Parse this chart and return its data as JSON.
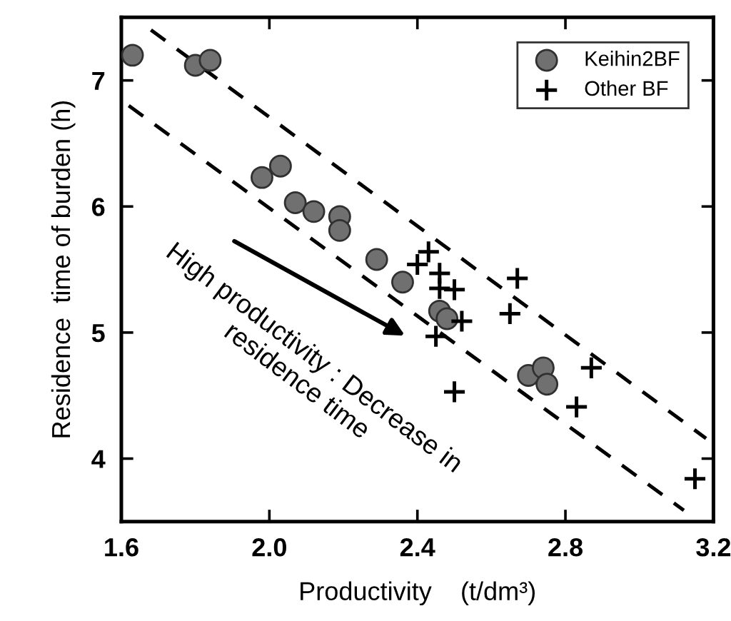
{
  "chart_data": {
    "type": "scatter",
    "xlabel": "Productivity    (t/dm³)",
    "ylabel": "Residence  time of burden (h)",
    "series": [
      {
        "name": "Keihin2BF",
        "marker": "circle",
        "color": "#707070",
        "x": [
          1.63,
          1.8,
          1.84,
          1.98,
          2.03,
          2.07,
          2.12,
          2.19,
          2.19,
          2.29,
          2.36,
          2.46,
          2.48,
          2.7,
          2.74,
          2.75
        ],
        "values": [
          7.2,
          7.12,
          7.16,
          6.23,
          6.32,
          6.03,
          5.96,
          5.92,
          5.81,
          5.58,
          5.4,
          5.17,
          5.11,
          4.66,
          4.72,
          4.59
        ]
      },
      {
        "name": "Other BF",
        "marker": "cross",
        "color": "#000000",
        "x": [
          2.43,
          2.4,
          2.46,
          2.46,
          2.5,
          2.52,
          2.45,
          2.67,
          2.65,
          2.87,
          2.83,
          2.5,
          3.15
        ],
        "values": [
          5.64,
          5.54,
          5.47,
          5.35,
          5.34,
          5.09,
          4.97,
          5.43,
          5.15,
          4.72,
          4.41,
          4.53,
          3.84
        ]
      },
      {
        "type": "line",
        "line_style": "dashed",
        "color": "#000000",
        "x": [
          1.68,
          3.18
        ],
        "values": [
          7.4,
          4.16
        ]
      },
      {
        "type": "line",
        "line_style": "dashed",
        "color": "#000000",
        "x": [
          1.62,
          3.12
        ],
        "values": [
          6.8,
          3.59
        ]
      }
    ],
    "annotations": [
      "High productivity : Decrease in\nresidence time"
    ],
    "xlim": [
      1.6,
      3.2
    ],
    "ylim": [
      3.5,
      7.5
    ],
    "xticks": [
      {
        "value": 1.6,
        "label": "1.6"
      },
      {
        "value": 2.0,
        "label": "2.0"
      },
      {
        "value": 2.4,
        "label": "2.4"
      },
      {
        "value": 2.8,
        "label": "2.8"
      },
      {
        "value": 3.2,
        "label": "3.2"
      }
    ],
    "yticks": [
      4,
      5,
      6,
      7
    ],
    "grid": false,
    "legend": "top right"
  }
}
